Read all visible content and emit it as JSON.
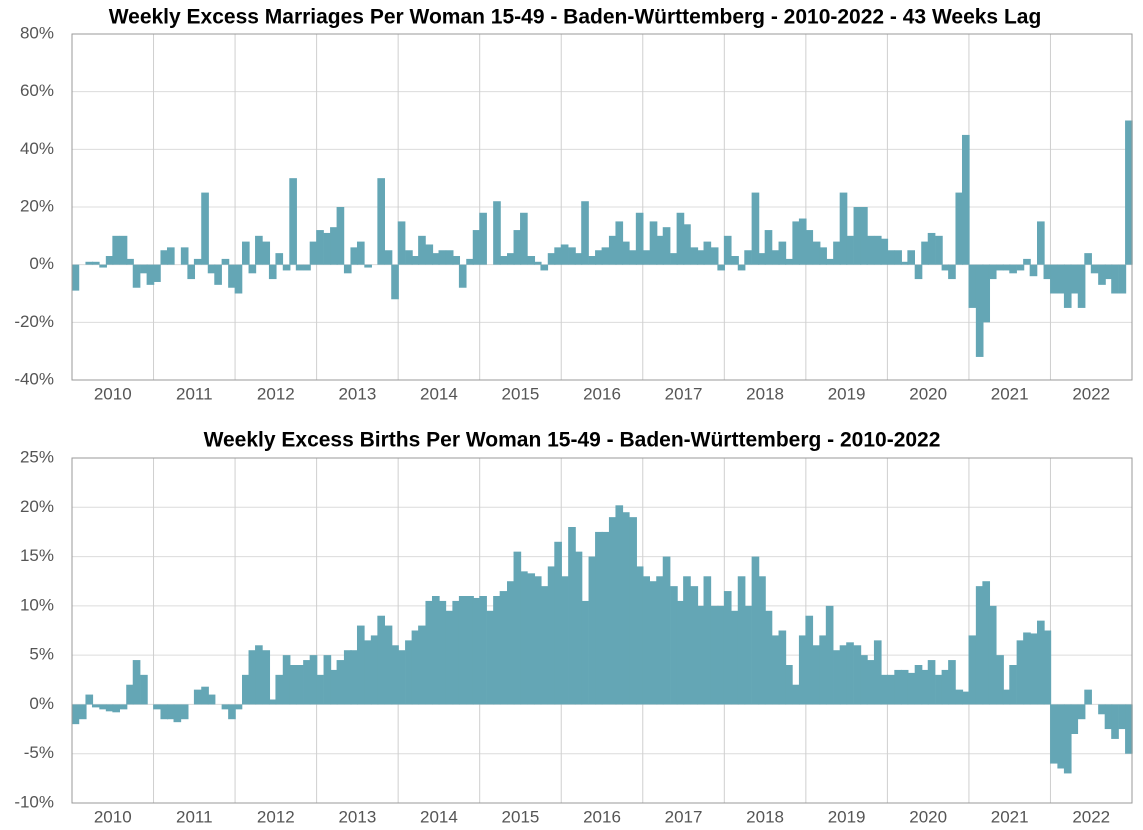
{
  "chart_data": [
    {
      "type": "bar",
      "title": "Weekly Excess Marriages Per Woman 15-49 - Baden-Württemberg - 2010-2022 - 43 Weeks Lag",
      "color": "#64a6b5",
      "grid": true,
      "xlim": [
        2010,
        2023
      ],
      "xticks": [
        {
          "value": 2010.5,
          "label": "2010"
        },
        {
          "value": 2011.5,
          "label": "2011"
        },
        {
          "value": 2012.5,
          "label": "2012"
        },
        {
          "value": 2013.5,
          "label": "2013"
        },
        {
          "value": 2014.5,
          "label": "2014"
        },
        {
          "value": 2015.5,
          "label": "2015"
        },
        {
          "value": 2016.5,
          "label": "2016"
        },
        {
          "value": 2017.5,
          "label": "2017"
        },
        {
          "value": 2018.5,
          "label": "2018"
        },
        {
          "value": 2019.5,
          "label": "2019"
        },
        {
          "value": 2020.5,
          "label": "2020"
        },
        {
          "value": 2021.5,
          "label": "2021"
        },
        {
          "value": 2022.5,
          "label": "2022"
        }
      ],
      "xgrid": [
        2011,
        2012,
        2013,
        2014,
        2015,
        2016,
        2017,
        2018,
        2019,
        2020,
        2021,
        2022
      ],
      "ylim": [
        -40,
        80
      ],
      "yticks": [
        {
          "value": -40,
          "label": "-40%"
        },
        {
          "value": -20,
          "label": "-20%"
        },
        {
          "value": 0,
          "label": "0%"
        },
        {
          "value": 20,
          "label": "20%"
        },
        {
          "value": 40,
          "label": "40%"
        },
        {
          "value": 60,
          "label": "60%"
        },
        {
          "value": 80,
          "label": "80%"
        }
      ],
      "x": [
        2010.04,
        2010.13,
        2010.21,
        2010.29,
        2010.38,
        2010.46,
        2010.54,
        2010.63,
        2010.71,
        2010.79,
        2010.88,
        2010.96,
        2011.04,
        2011.13,
        2011.21,
        2011.29,
        2011.38,
        2011.46,
        2011.54,
        2011.63,
        2011.71,
        2011.79,
        2011.88,
        2011.96,
        2012.04,
        2012.13,
        2012.21,
        2012.29,
        2012.38,
        2012.46,
        2012.54,
        2012.63,
        2012.71,
        2012.79,
        2012.88,
        2012.96,
        2013.04,
        2013.13,
        2013.21,
        2013.29,
        2013.38,
        2013.46,
        2013.54,
        2013.63,
        2013.71,
        2013.79,
        2013.88,
        2013.96,
        2014.04,
        2014.13,
        2014.21,
        2014.29,
        2014.38,
        2014.46,
        2014.54,
        2014.63,
        2014.71,
        2014.79,
        2014.88,
        2014.96,
        2015.04,
        2015.13,
        2015.21,
        2015.29,
        2015.38,
        2015.46,
        2015.54,
        2015.63,
        2015.71,
        2015.79,
        2015.88,
        2015.96,
        2016.04,
        2016.13,
        2016.21,
        2016.29,
        2016.38,
        2016.46,
        2016.54,
        2016.63,
        2016.71,
        2016.79,
        2016.88,
        2016.96,
        2017.04,
        2017.13,
        2017.21,
        2017.29,
        2017.38,
        2017.46,
        2017.54,
        2017.63,
        2017.71,
        2017.79,
        2017.88,
        2017.96,
        2018.04,
        2018.13,
        2018.21,
        2018.29,
        2018.38,
        2018.46,
        2018.54,
        2018.63,
        2018.71,
        2018.79,
        2018.88,
        2018.96,
        2019.04,
        2019.13,
        2019.21,
        2019.29,
        2019.38,
        2019.46,
        2019.54,
        2019.63,
        2019.71,
        2019.79,
        2019.88,
        2019.96,
        2020.04,
        2020.13,
        2020.21,
        2020.29,
        2020.38,
        2020.46,
        2020.54,
        2020.63,
        2020.71,
        2020.79,
        2020.88,
        2020.96,
        2021.04,
        2021.13,
        2021.21,
        2021.29,
        2021.38,
        2021.46,
        2021.54,
        2021.63,
        2021.71,
        2021.79,
        2021.88,
        2021.96,
        2022.04,
        2022.13,
        2022.21,
        2022.29,
        2022.38,
        2022.46,
        2022.54,
        2022.63,
        2022.71,
        2022.79,
        2022.88,
        2022.96
      ],
      "values": [
        -9,
        0,
        1,
        1,
        -1,
        3,
        10,
        10,
        2,
        -8,
        -3,
        -7,
        -6,
        5,
        6,
        0,
        6,
        -5,
        2,
        25,
        -3,
        -7,
        2,
        -8,
        -10,
        8,
        -3,
        10,
        8,
        -5,
        4,
        -2,
        30,
        -2,
        -2,
        8,
        12,
        11,
        13,
        20,
        -3,
        6,
        8,
        -1,
        0,
        30,
        5,
        -12,
        15,
        5,
        3,
        10,
        7,
        4,
        5,
        5,
        3,
        -8,
        2,
        12,
        18,
        0,
        22,
        3,
        4,
        12,
        18,
        3,
        1,
        -2,
        4,
        6,
        7,
        6,
        4,
        22,
        3,
        5,
        6,
        10,
        15,
        8,
        5,
        18,
        5,
        15,
        10,
        13,
        4,
        18,
        14,
        6,
        5,
        8,
        6,
        -2,
        10,
        3,
        -2,
        5,
        25,
        4,
        12,
        5,
        8,
        2,
        15,
        16,
        12,
        8,
        6,
        2,
        8,
        25,
        10,
        20,
        20,
        10,
        10,
        9,
        5,
        5,
        1,
        5,
        -5,
        8,
        11,
        10,
        -2,
        -5,
        25,
        45,
        -15,
        -32,
        -20,
        -5,
        -2,
        -2,
        -3,
        -2,
        2,
        -4,
        15,
        -5,
        -10,
        -10,
        -15,
        -10,
        -15,
        4,
        -3,
        -7,
        -5,
        -10,
        -10,
        50
      ]
    },
    {
      "type": "bar",
      "title": "Weekly Excess Births Per Woman 15-49 - Baden-Württemberg - 2010-2022",
      "color": "#64a6b5",
      "grid": true,
      "xlim": [
        2010,
        2023
      ],
      "xticks": [
        {
          "value": 2010.5,
          "label": "2010"
        },
        {
          "value": 2011.5,
          "label": "2011"
        },
        {
          "value": 2012.5,
          "label": "2012"
        },
        {
          "value": 2013.5,
          "label": "2013"
        },
        {
          "value": 2014.5,
          "label": "2014"
        },
        {
          "value": 2015.5,
          "label": "2015"
        },
        {
          "value": 2016.5,
          "label": "2016"
        },
        {
          "value": 2017.5,
          "label": "2017"
        },
        {
          "value": 2018.5,
          "label": "2018"
        },
        {
          "value": 2019.5,
          "label": "2019"
        },
        {
          "value": 2020.5,
          "label": "2020"
        },
        {
          "value": 2021.5,
          "label": "2021"
        },
        {
          "value": 2022.5,
          "label": "2022"
        }
      ],
      "xgrid": [
        2011,
        2012,
        2013,
        2014,
        2015,
        2016,
        2017,
        2018,
        2019,
        2020,
        2021,
        2022
      ],
      "ylim": [
        -10,
        25
      ],
      "yticks": [
        {
          "value": -10,
          "label": "-10%"
        },
        {
          "value": -5,
          "label": "-5%"
        },
        {
          "value": 0,
          "label": "0%"
        },
        {
          "value": 5,
          "label": "5%"
        },
        {
          "value": 10,
          "label": "10%"
        },
        {
          "value": 15,
          "label": "15%"
        },
        {
          "value": 20,
          "label": "20%"
        },
        {
          "value": 25,
          "label": "25%"
        }
      ],
      "x": [
        2010.04,
        2010.13,
        2010.21,
        2010.29,
        2010.38,
        2010.46,
        2010.54,
        2010.63,
        2010.71,
        2010.79,
        2010.88,
        2010.96,
        2011.04,
        2011.13,
        2011.21,
        2011.29,
        2011.38,
        2011.46,
        2011.54,
        2011.63,
        2011.71,
        2011.79,
        2011.88,
        2011.96,
        2012.04,
        2012.13,
        2012.21,
        2012.29,
        2012.38,
        2012.46,
        2012.54,
        2012.63,
        2012.71,
        2012.79,
        2012.88,
        2012.96,
        2013.04,
        2013.13,
        2013.21,
        2013.29,
        2013.38,
        2013.46,
        2013.54,
        2013.63,
        2013.71,
        2013.79,
        2013.88,
        2013.96,
        2014.04,
        2014.13,
        2014.21,
        2014.29,
        2014.38,
        2014.46,
        2014.54,
        2014.63,
        2014.71,
        2014.79,
        2014.88,
        2014.96,
        2015.04,
        2015.13,
        2015.21,
        2015.29,
        2015.38,
        2015.46,
        2015.54,
        2015.63,
        2015.71,
        2015.79,
        2015.88,
        2015.96,
        2016.04,
        2016.13,
        2016.21,
        2016.29,
        2016.38,
        2016.46,
        2016.54,
        2016.63,
        2016.71,
        2016.79,
        2016.88,
        2016.96,
        2017.04,
        2017.13,
        2017.21,
        2017.29,
        2017.38,
        2017.46,
        2017.54,
        2017.63,
        2017.71,
        2017.79,
        2017.88,
        2017.96,
        2018.04,
        2018.13,
        2018.21,
        2018.29,
        2018.38,
        2018.46,
        2018.54,
        2018.63,
        2018.71,
        2018.79,
        2018.88,
        2018.96,
        2019.04,
        2019.13,
        2019.21,
        2019.29,
        2019.38,
        2019.46,
        2019.54,
        2019.63,
        2019.71,
        2019.79,
        2019.88,
        2019.96,
        2020.04,
        2020.13,
        2020.21,
        2020.29,
        2020.38,
        2020.46,
        2020.54,
        2020.63,
        2020.71,
        2020.79,
        2020.88,
        2020.96,
        2021.04,
        2021.13,
        2021.21,
        2021.29,
        2021.38,
        2021.46,
        2021.54,
        2021.63,
        2021.71,
        2021.79,
        2021.88,
        2021.96,
        2022.04,
        2022.13,
        2022.21,
        2022.29,
        2022.38,
        2022.46,
        2022.54,
        2022.63,
        2022.71,
        2022.79,
        2022.88,
        2022.96
      ],
      "values": [
        -2,
        -1.5,
        1,
        -0.3,
        -0.5,
        -0.7,
        -0.8,
        -0.5,
        2,
        4.5,
        3,
        0,
        -0.5,
        -1.5,
        -1.5,
        -1.8,
        -1.5,
        0,
        1.5,
        1.8,
        1,
        0,
        -0.5,
        -1.5,
        -0.5,
        3,
        5.5,
        6,
        5.5,
        0.5,
        3,
        5,
        4,
        4,
        4.5,
        5,
        3,
        5,
        3.5,
        4.5,
        5.5,
        5.5,
        8,
        6.5,
        7,
        9,
        8,
        6,
        5.5,
        6.5,
        7.5,
        8,
        10.5,
        11,
        10.5,
        9.5,
        10.5,
        11,
        11,
        10.8,
        11,
        9.5,
        11,
        11.5,
        12.5,
        15.5,
        13.5,
        13.3,
        13,
        12,
        14,
        16.5,
        13,
        18,
        15.5,
        10.5,
        15,
        17.5,
        17.5,
        19,
        20.2,
        19.5,
        19,
        14,
        13,
        12.5,
        13,
        15,
        12,
        10.5,
        13,
        12,
        10,
        13,
        10,
        10,
        11.5,
        9.5,
        13,
        10,
        15,
        13,
        9.5,
        7,
        7.5,
        4,
        2,
        7,
        9,
        6,
        7,
        10,
        5.5,
        6,
        6.3,
        6,
        5,
        4.5,
        6.5,
        3,
        3,
        3.5,
        3.5,
        3.2,
        4,
        3.5,
        4.5,
        3,
        3.5,
        4.5,
        1.5,
        1.3,
        7,
        12,
        12.5,
        10,
        5,
        1.5,
        4,
        6.5,
        7.3,
        7.2,
        8.5,
        7.5,
        -6,
        -6.5,
        -7,
        -3,
        -1.5,
        1.5,
        0,
        -1,
        -2.5,
        -3.5,
        -2.5,
        -5
      ]
    }
  ]
}
